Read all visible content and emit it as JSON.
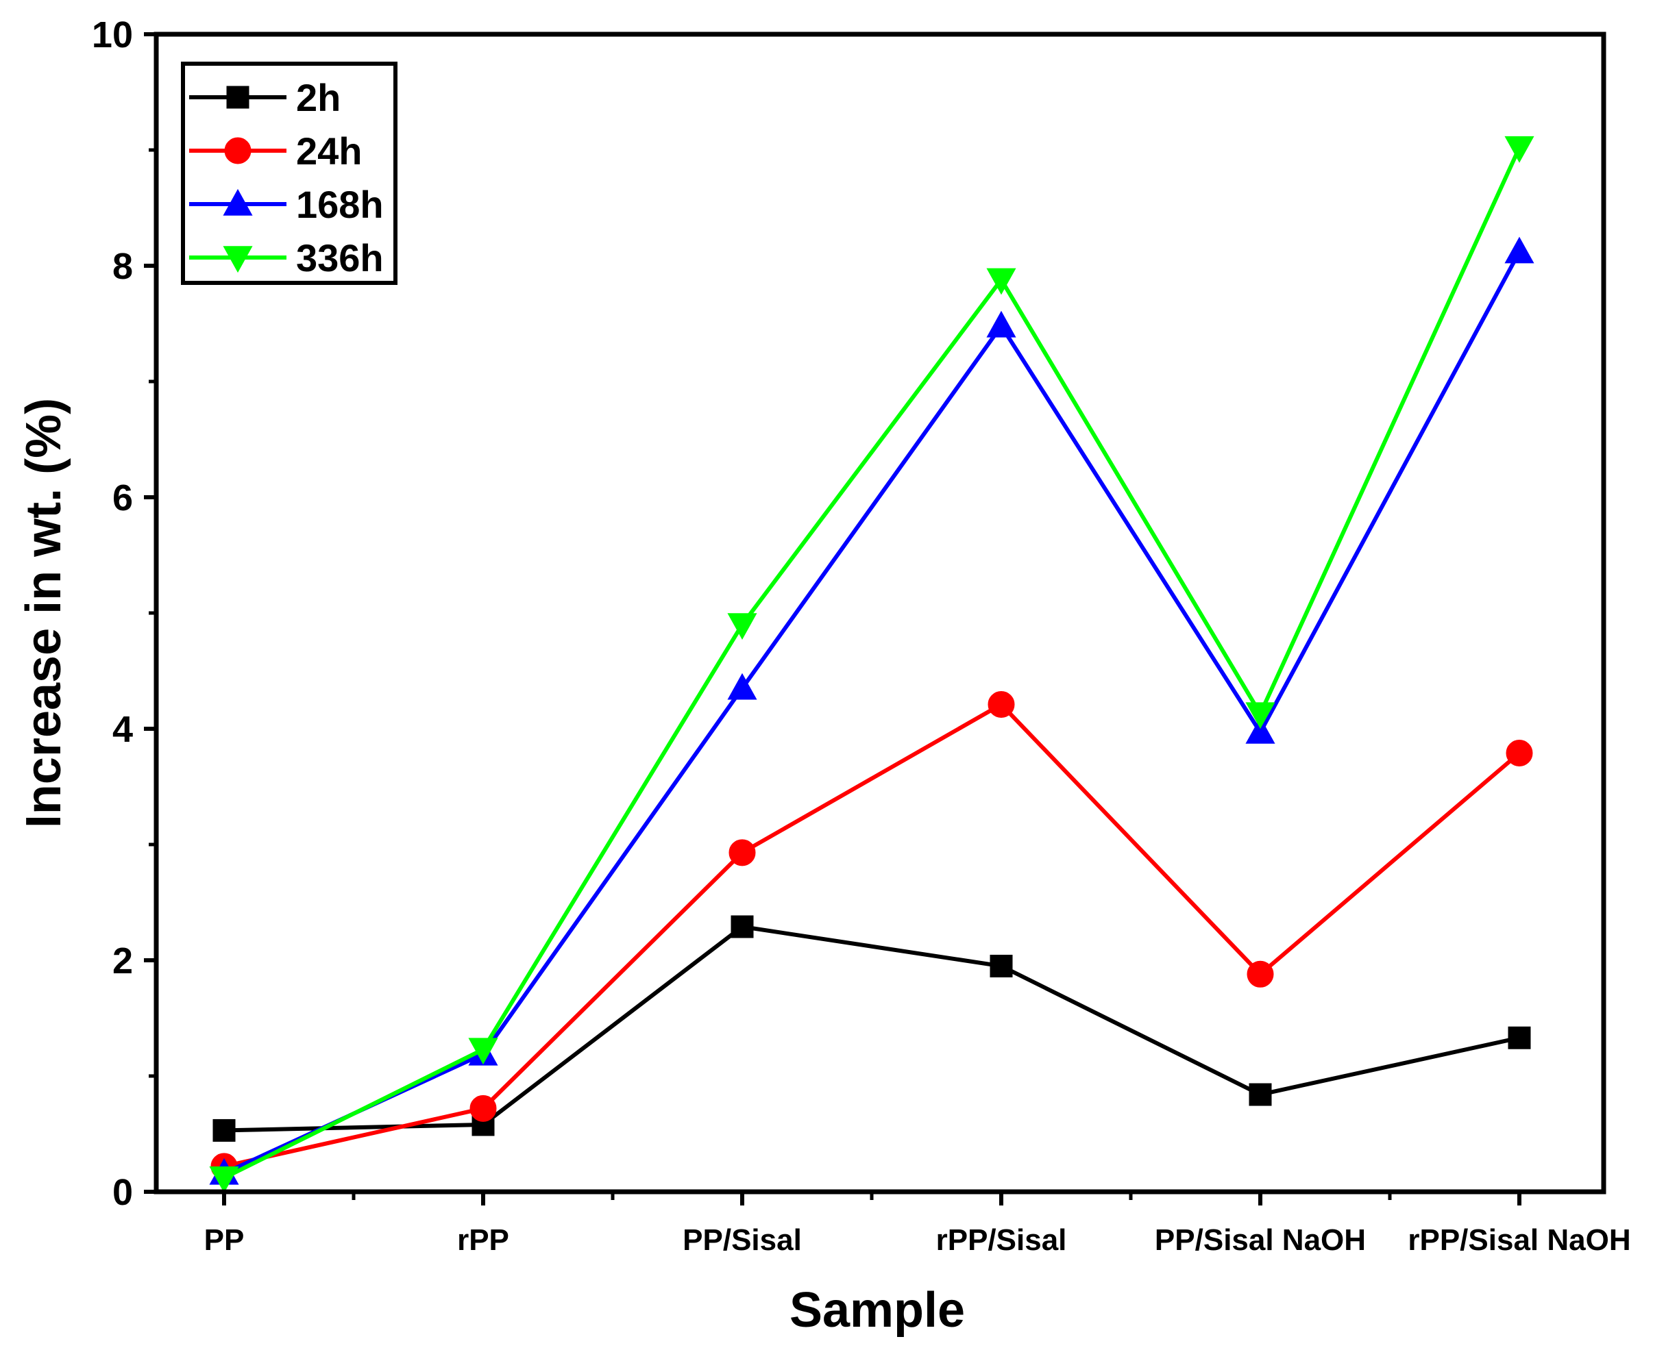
{
  "chart_data": {
    "type": "line",
    "title": "",
    "xlabel": "Sample",
    "ylabel": "Increase in wt. (%)",
    "ylim": [
      0,
      10
    ],
    "yticks": [
      0,
      2,
      4,
      6,
      8,
      10
    ],
    "yminor_ticks": [
      1,
      3,
      5,
      7,
      9
    ],
    "tick_labels": [
      "0",
      "2",
      "4",
      "6",
      "8",
      "10"
    ],
    "categories": [
      "PP",
      "rPP",
      "PP/Sisal",
      "rPP/Sisal",
      "PP/Sisal NaOH",
      "rPP/Sisal NaOH"
    ],
    "grid": false,
    "legend_position": "top-left",
    "series": [
      {
        "name": "2h",
        "color": "#000000",
        "marker": "square",
        "values": [
          0.53,
          0.58,
          2.29,
          1.95,
          0.84,
          1.33
        ]
      },
      {
        "name": "24h",
        "color": "#ff0000",
        "marker": "circle",
        "values": [
          0.22,
          0.72,
          2.93,
          4.21,
          1.88,
          3.79
        ]
      },
      {
        "name": "168h",
        "color": "#0000ff",
        "marker": "triangle-up",
        "values": [
          0.16,
          1.19,
          4.35,
          7.48,
          3.97,
          8.12
        ]
      },
      {
        "name": "336h",
        "color": "#00ff00",
        "marker": "triangle-down",
        "values": [
          0.12,
          1.23,
          4.9,
          7.88,
          4.13,
          9.02
        ]
      }
    ]
  }
}
